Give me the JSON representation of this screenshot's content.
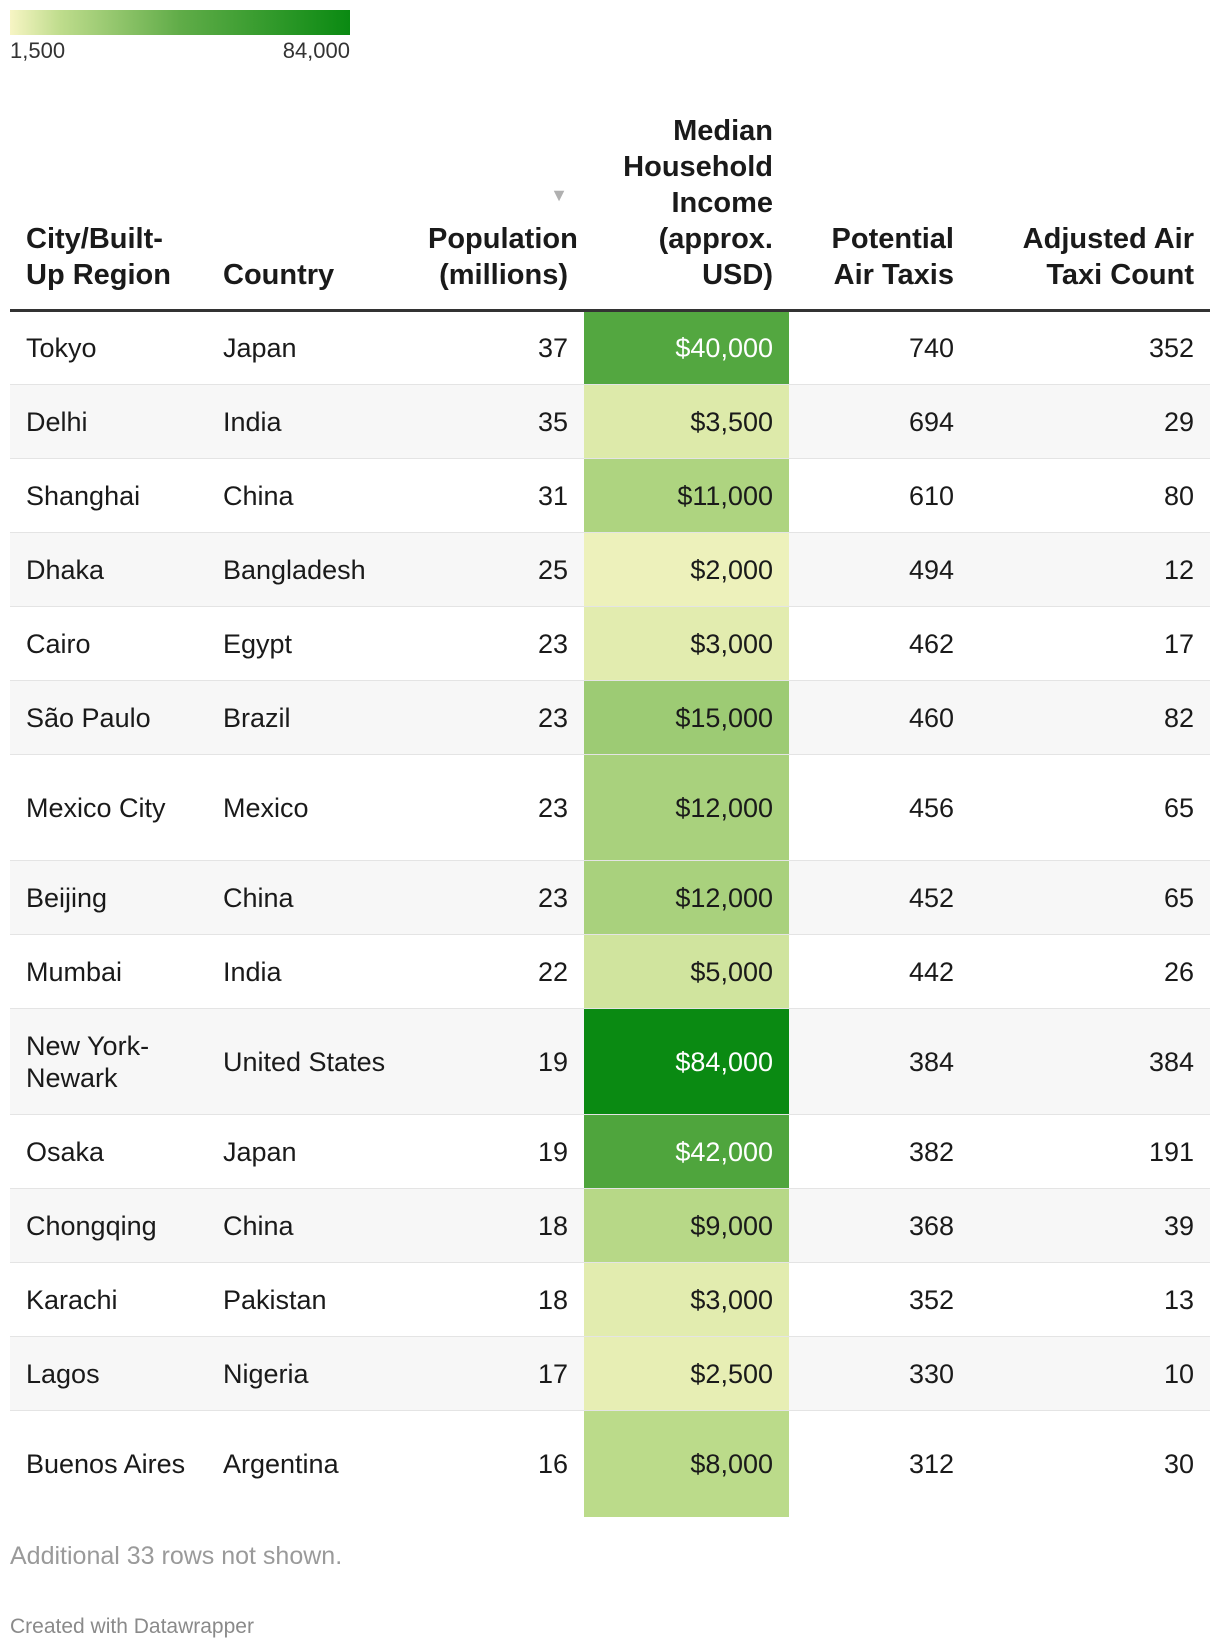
{
  "legend": {
    "min_label": "1,500",
    "max_label": "84,000",
    "min_value": 1500,
    "max_value": 84000,
    "color_low": "#f7f5c4",
    "color_high": "#0a8a12"
  },
  "chart_data": {
    "type": "table",
    "columns": [
      "City/Built-Up Region",
      "Country",
      "Population (millions)",
      "Median Household Income (approx. USD)",
      "Potential Air Taxis",
      "Adjusted Air Taxi Count"
    ],
    "sorted_column": "Population (millions)",
    "sort_order": "descending",
    "rows": [
      {
        "city": "Tokyo",
        "country": "Japan",
        "population": 37,
        "income_label": "$40,000",
        "income": 40000,
        "potential": 740,
        "adjusted": 352
      },
      {
        "city": "Delhi",
        "country": "India",
        "population": 35,
        "income_label": "$3,500",
        "income": 3500,
        "potential": 694,
        "adjusted": 29
      },
      {
        "city": "Shanghai",
        "country": "China",
        "population": 31,
        "income_label": "$11,000",
        "income": 11000,
        "potential": 610,
        "adjusted": 80
      },
      {
        "city": "Dhaka",
        "country": "Bangladesh",
        "population": 25,
        "income_label": "$2,000",
        "income": 2000,
        "potential": 494,
        "adjusted": 12
      },
      {
        "city": "Cairo",
        "country": "Egypt",
        "population": 23,
        "income_label": "$3,000",
        "income": 3000,
        "potential": 462,
        "adjusted": 17
      },
      {
        "city": "São Paulo",
        "country": "Brazil",
        "population": 23,
        "income_label": "$15,000",
        "income": 15000,
        "potential": 460,
        "adjusted": 82
      },
      {
        "city": "Mexico City",
        "country": "Mexico",
        "population": 23,
        "income_label": "$12,000",
        "income": 12000,
        "potential": 456,
        "adjusted": 65
      },
      {
        "city": "Beijing",
        "country": "China",
        "population": 23,
        "income_label": "$12,000",
        "income": 12000,
        "potential": 452,
        "adjusted": 65
      },
      {
        "city": "Mumbai",
        "country": "India",
        "population": 22,
        "income_label": "$5,000",
        "income": 5000,
        "potential": 442,
        "adjusted": 26
      },
      {
        "city": "New York-Newark",
        "country": "United States",
        "population": 19,
        "income_label": "$84,000",
        "income": 84000,
        "potential": 384,
        "adjusted": 384
      },
      {
        "city": "Osaka",
        "country": "Japan",
        "population": 19,
        "income_label": "$42,000",
        "income": 42000,
        "potential": 382,
        "adjusted": 191
      },
      {
        "city": "Chongqing",
        "country": "China",
        "population": 18,
        "income_label": "$9,000",
        "income": 9000,
        "potential": 368,
        "adjusted": 39
      },
      {
        "city": "Karachi",
        "country": "Pakistan",
        "population": 18,
        "income_label": "$3,000",
        "income": 3000,
        "potential": 352,
        "adjusted": 13
      },
      {
        "city": "Lagos",
        "country": "Nigeria",
        "population": 17,
        "income_label": "$2,500",
        "income": 2500,
        "potential": 330,
        "adjusted": 10
      },
      {
        "city": "Buenos Aires",
        "country": "Argentina",
        "population": 16,
        "income_label": "$8,000",
        "income": 8000,
        "potential": 312,
        "adjusted": 30
      }
    ]
  },
  "notes": {
    "more_rows": "Additional 33 rows not shown.",
    "credit": "Created with Datawrapper"
  },
  "sort_icon": "sort-down-triangle-icon"
}
